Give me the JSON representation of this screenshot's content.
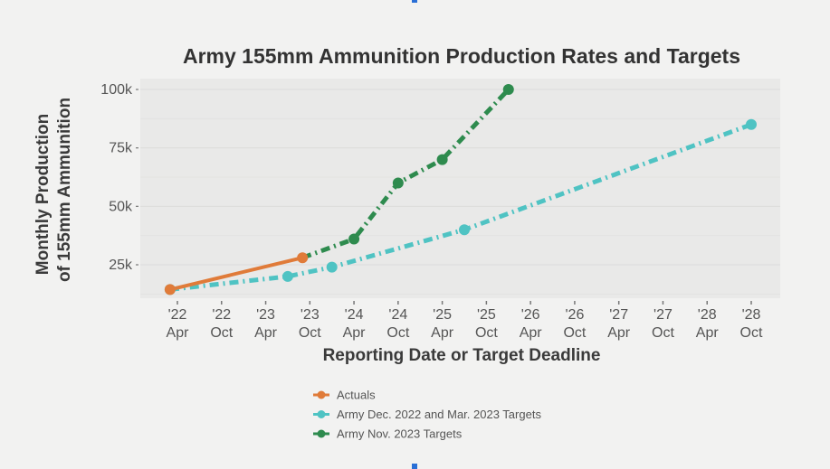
{
  "chart_data": {
    "type": "line",
    "title": "Army 155mm Ammunition Production Rates and Targets",
    "xlabel": "Reporting Date or Target Deadline",
    "ylabel": [
      "Monthly Production",
      "of 155mm Ammunition"
    ],
    "ylim": [
      11000,
      104000
    ],
    "xlim": [
      "2022-01",
      "2029-01"
    ],
    "grid": true,
    "legend_position": "bottom",
    "y_ticks": [
      {
        "value": 25000,
        "label": "25k"
      },
      {
        "value": 50000,
        "label": "50k"
      },
      {
        "value": 75000,
        "label": "75k"
      },
      {
        "value": 100000,
        "label": "100k"
      }
    ],
    "x_ticks": [
      {
        "date": "2022-04",
        "label": [
          "'22",
          "Apr"
        ]
      },
      {
        "date": "2022-10",
        "label": [
          "'22",
          "Oct"
        ]
      },
      {
        "date": "2023-04",
        "label": [
          "'23",
          "Apr"
        ]
      },
      {
        "date": "2023-10",
        "label": [
          "'23",
          "Oct"
        ]
      },
      {
        "date": "2024-04",
        "label": [
          "'24",
          "Apr"
        ]
      },
      {
        "date": "2024-10",
        "label": [
          "'24",
          "Oct"
        ]
      },
      {
        "date": "2025-04",
        "label": [
          "'25",
          "Apr"
        ]
      },
      {
        "date": "2025-10",
        "label": [
          "'25",
          "Oct"
        ]
      },
      {
        "date": "2026-04",
        "label": [
          "'26",
          "Apr"
        ]
      },
      {
        "date": "2026-10",
        "label": [
          "'26",
          "Oct"
        ]
      },
      {
        "date": "2027-04",
        "label": [
          "'27",
          "Apr"
        ]
      },
      {
        "date": "2027-10",
        "label": [
          "'27",
          "Oct"
        ]
      },
      {
        "date": "2028-04",
        "label": [
          "'28",
          "Apr"
        ]
      },
      {
        "date": "2028-10",
        "label": [
          "'28",
          "Oct"
        ]
      }
    ],
    "series": [
      {
        "name": "Actuals",
        "color": "#e07b39",
        "style": "solid",
        "points": [
          {
            "date": "2022-03",
            "value": 14400
          },
          {
            "date": "2023-09",
            "value": 28000
          }
        ]
      },
      {
        "name": "Army Dec. 2022 and Mar. 2023 Targets",
        "color": "#4fc3c3",
        "style": "dashdot",
        "points": [
          {
            "date": "2022-03",
            "value": 14400
          },
          {
            "date": "2023-07",
            "value": 20000
          },
          {
            "date": "2024-01",
            "value": 24000
          },
          {
            "date": "2025-07",
            "value": 40000
          },
          {
            "date": "2028-10",
            "value": 85000
          }
        ]
      },
      {
        "name": "Army Nov. 2023 Targets",
        "color": "#2e8b4e",
        "style": "dashdot",
        "points": [
          {
            "date": "2023-09",
            "value": 28000,
            "marker": false
          },
          {
            "date": "2024-04",
            "value": 36000
          },
          {
            "date": "2024-10",
            "value": 60000
          },
          {
            "date": "2025-04",
            "value": 70000
          },
          {
            "date": "2026-01",
            "value": 100000
          }
        ]
      }
    ]
  }
}
